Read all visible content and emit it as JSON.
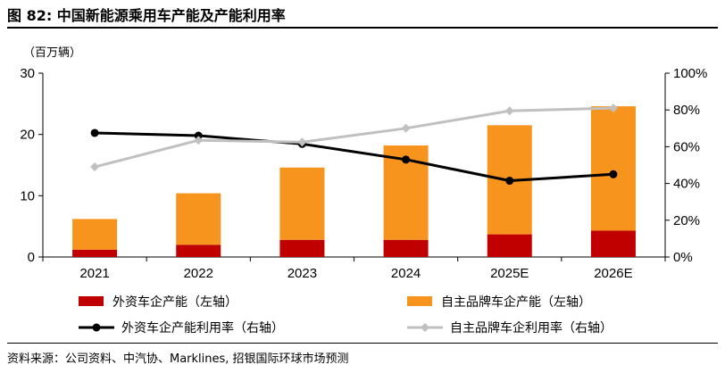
{
  "figure": {
    "title": "图 82: 中国新能源乘用车产能及产能利用率",
    "source": "资料来源：公司资料、中汽协、Marklines, 招银国际环球市场预测"
  },
  "chart_data": {
    "type": "bar",
    "categories": [
      "2021",
      "2022",
      "2023",
      "2024",
      "2025E",
      "2026E"
    ],
    "left_axis": {
      "unit": "（百万辆）",
      "ylim": [
        0,
        30
      ],
      "ticks": [
        0,
        10,
        20,
        30
      ]
    },
    "right_axis": {
      "ylim": [
        0,
        100
      ],
      "ticks": [
        0,
        20,
        40,
        60,
        80,
        100
      ],
      "tick_suffix": "%"
    },
    "bars_stacked": [
      {
        "name": "外资车企产能（左轴）",
        "color": "#C00000",
        "values": [
          1.2,
          2.0,
          2.8,
          2.8,
          3.7,
          4.3
        ]
      },
      {
        "name": "自主品牌车企产能（左轴）",
        "color": "#F7941D",
        "values": [
          5.0,
          8.4,
          11.8,
          15.4,
          17.8,
          20.3
        ]
      }
    ],
    "lines": [
      {
        "name": "外资车企产能利用率（右轴）",
        "color": "#000000",
        "values": [
          67.5,
          66,
          61.5,
          53,
          41.5,
          45
        ]
      },
      {
        "name": "自主品牌车企利用率（右轴）",
        "color": "#C0C0C0",
        "values": [
          49,
          63.5,
          62.5,
          70,
          79.5,
          81
        ]
      }
    ],
    "grid": false,
    "legend_position": "bottom"
  }
}
